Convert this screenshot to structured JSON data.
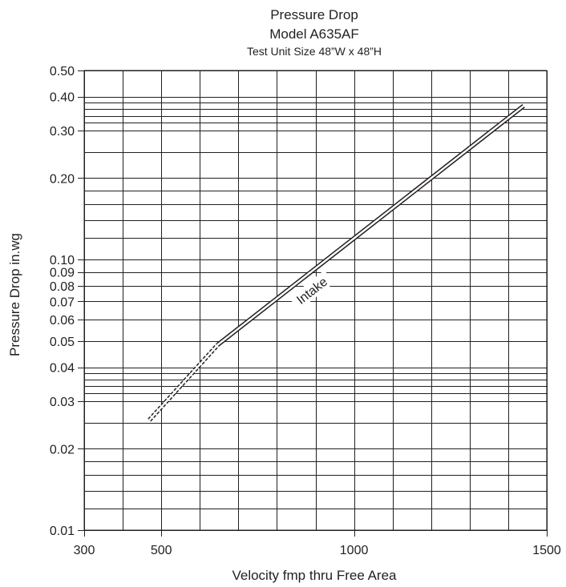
{
  "chart_data": {
    "type": "line",
    "title": "Pressure Drop",
    "subtitle": "Model A635AF",
    "subtitle2": "Test Unit Size 48”W x 48”H",
    "xlabel": "Velocity fmp thru Free Area",
    "ylabel": "Pressure Drop in.wg",
    "xlim": [
      300,
      1500
    ],
    "ylim": [
      0.01,
      0.5
    ],
    "x_ticks": [
      {
        "value": 300,
        "label": "300"
      },
      {
        "value": 500,
        "label": "500"
      },
      {
        "value": 1000,
        "label": "1000"
      },
      {
        "value": 1500,
        "label": "1500"
      }
    ],
    "y_ticks": [
      {
        "value": 0.5,
        "label": "0.50"
      },
      {
        "value": 0.4,
        "label": "0.40"
      },
      {
        "value": 0.3,
        "label": "0.30"
      },
      {
        "value": 0.2,
        "label": "0.20"
      },
      {
        "value": 0.1,
        "label": "0.10"
      },
      {
        "value": 0.09,
        "label": "0.09"
      },
      {
        "value": 0.08,
        "label": "0.08"
      },
      {
        "value": 0.07,
        "label": "0.07"
      },
      {
        "value": 0.06,
        "label": "0.06"
      },
      {
        "value": 0.05,
        "label": "0.05"
      },
      {
        "value": 0.04,
        "label": "0.04"
      },
      {
        "value": 0.03,
        "label": "0.03"
      },
      {
        "value": 0.02,
        "label": "0.02"
      },
      {
        "value": 0.01,
        "label": "0.01"
      }
    ],
    "x_grid": [
      300,
      400,
      500,
      600,
      700,
      800,
      900,
      1000,
      1100,
      1200,
      1300,
      1400,
      1500
    ],
    "y_grid": [
      0.01,
      0.012,
      0.014,
      0.016,
      0.018,
      0.02,
      0.025,
      0.03,
      0.032,
      0.034,
      0.036,
      0.038,
      0.04,
      0.05,
      0.06,
      0.07,
      0.08,
      0.09,
      0.1,
      0.12,
      0.14,
      0.16,
      0.18,
      0.2,
      0.25,
      0.3,
      0.32,
      0.34,
      0.36,
      0.38,
      0.4,
      0.5
    ],
    "x_scale": "linear",
    "y_scale": "log",
    "grid": true,
    "series": [
      {
        "name": "Intake",
        "label_at": {
          "x": 890,
          "y": 0.077
        },
        "dashed": {
          "x": [
            469,
            647
          ],
          "y": [
            0.0255,
            0.0485
          ]
        },
        "solid": {
          "x": [
            647,
            1440
          ],
          "y": [
            0.0485,
            0.37
          ]
        }
      }
    ]
  }
}
